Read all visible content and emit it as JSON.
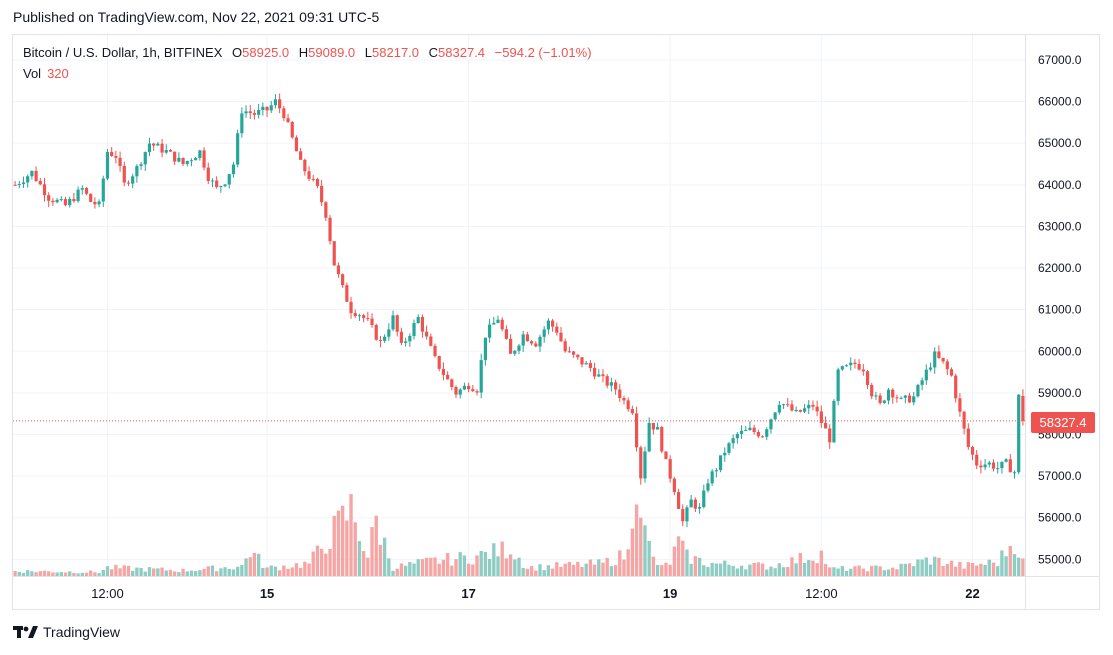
{
  "published": "Published on TradingView.com, Nov 22, 2021 09:31 UTC-5",
  "legend": {
    "symbol": "Bitcoin / U.S. Dollar, 1h, BITFINEX",
    "open_label": "O",
    "open": "58925.0",
    "high_label": "H",
    "high": "59089.0",
    "low_label": "L",
    "low": "58217.0",
    "close_label": "C",
    "close": "58327.4",
    "change": "−594.2 (−1.01%)",
    "vol_label": "Vol",
    "vol": "320"
  },
  "brand": "TradingView",
  "colors": {
    "up": "#26a69a",
    "down": "#ef5350",
    "up_vol": "#8fcdc4",
    "down_vol": "#f5a6a4",
    "grid": "#f0f3fa"
  },
  "chart_data": {
    "type": "candlestick",
    "y_ticks": [
      "67000.0",
      "66000.0",
      "65000.0",
      "64000.0",
      "63000.0",
      "62000.0",
      "61000.0",
      "60000.0",
      "59000.0",
      "58000.0",
      "57000.0",
      "56000.0",
      "55000.0"
    ],
    "ylim": [
      54600,
      67600
    ],
    "x_ticks": [
      {
        "label": "12:00",
        "bold": false,
        "index": 22
      },
      {
        "label": "15",
        "bold": true,
        "index": 60
      },
      {
        "label": "17",
        "bold": true,
        "index": 108
      },
      {
        "label": "19",
        "bold": true,
        "index": 156
      },
      {
        "label": "12:00",
        "bold": false,
        "index": 192
      },
      {
        "label": "22",
        "bold": true,
        "index": 228
      }
    ],
    "last_price": "58327.4",
    "last_price_value": 58327.4,
    "close_path": [
      [
        0,
        64000
      ],
      [
        4,
        64300
      ],
      [
        8,
        63700
      ],
      [
        12,
        63500
      ],
      [
        16,
        63900
      ],
      [
        18,
        63600
      ],
      [
        20,
        63500
      ],
      [
        22,
        64800
      ],
      [
        24,
        64700
      ],
      [
        26,
        64000
      ],
      [
        29,
        64400
      ],
      [
        32,
        65000
      ],
      [
        36,
        64800
      ],
      [
        40,
        64500
      ],
      [
        44,
        64800
      ],
      [
        46,
        64200
      ],
      [
        48,
        63900
      ],
      [
        50,
        64100
      ],
      [
        52,
        64500
      ],
      [
        54,
        65800
      ],
      [
        57,
        65700
      ],
      [
        60,
        65800
      ],
      [
        62,
        66000
      ],
      [
        64,
        65700
      ],
      [
        68,
        64500
      ],
      [
        72,
        63900
      ],
      [
        74,
        63300
      ],
      [
        76,
        62100
      ],
      [
        78,
        61500
      ],
      [
        80,
        61000
      ],
      [
        82,
        60900
      ],
      [
        84,
        60700
      ],
      [
        87,
        60200
      ],
      [
        90,
        60800
      ],
      [
        92,
        60100
      ],
      [
        96,
        60800
      ],
      [
        98,
        60300
      ],
      [
        100,
        59800
      ],
      [
        103,
        59300
      ],
      [
        105,
        59000
      ],
      [
        108,
        59200
      ],
      [
        110,
        59100
      ],
      [
        112,
        60400
      ],
      [
        115,
        60800
      ],
      [
        118,
        59900
      ],
      [
        121,
        60400
      ],
      [
        124,
        60200
      ],
      [
        127,
        60700
      ],
      [
        129,
        60500
      ],
      [
        131,
        60000
      ],
      [
        134,
        59800
      ],
      [
        137,
        59600
      ],
      [
        140,
        59300
      ],
      [
        143,
        59100
      ],
      [
        145,
        58800
      ],
      [
        147,
        58600
      ],
      [
        149,
        57000
      ],
      [
        151,
        58300
      ],
      [
        153,
        58100
      ],
      [
        155,
        57300
      ],
      [
        157,
        56700
      ],
      [
        159,
        55900
      ],
      [
        161,
        56400
      ],
      [
        163,
        56200
      ],
      [
        165,
        56900
      ],
      [
        167,
        57200
      ],
      [
        169,
        57600
      ],
      [
        172,
        58000
      ],
      [
        175,
        58100
      ],
      [
        178,
        58000
      ],
      [
        180,
        58400
      ],
      [
        182,
        58800
      ],
      [
        186,
        58500
      ],
      [
        190,
        58700
      ],
      [
        192,
        58300
      ],
      [
        194,
        57900
      ],
      [
        196,
        59500
      ],
      [
        200,
        59700
      ],
      [
        202,
        59600
      ],
      [
        204,
        59000
      ],
      [
        206,
        58700
      ],
      [
        208,
        59100
      ],
      [
        211,
        58800
      ],
      [
        214,
        58900
      ],
      [
        217,
        59500
      ],
      [
        219,
        59900
      ],
      [
        221,
        59700
      ],
      [
        223,
        59400
      ],
      [
        225,
        58500
      ],
      [
        227,
        57700
      ],
      [
        229,
        57300
      ],
      [
        232,
        57300
      ],
      [
        234,
        57200
      ],
      [
        236,
        57300
      ],
      [
        238,
        57100
      ],
      [
        239,
        58900
      ],
      [
        240,
        58327
      ]
    ],
    "volume_path": [
      [
        0,
        180
      ],
      [
        20,
        140
      ],
      [
        22,
        300
      ],
      [
        40,
        200
      ],
      [
        54,
        350
      ],
      [
        56,
        900
      ],
      [
        60,
        280
      ],
      [
        70,
        450
      ],
      [
        80,
        2400
      ],
      [
        82,
        1600
      ],
      [
        84,
        700
      ],
      [
        86,
        2000
      ],
      [
        90,
        300
      ],
      [
        100,
        550
      ],
      [
        110,
        700
      ],
      [
        115,
        900
      ],
      [
        118,
        1000
      ],
      [
        122,
        300
      ],
      [
        140,
        450
      ],
      [
        146,
        800
      ],
      [
        148,
        4200
      ],
      [
        150,
        1500
      ],
      [
        152,
        600
      ],
      [
        154,
        300
      ],
      [
        156,
        500
      ],
      [
        158,
        1200
      ],
      [
        160,
        700
      ],
      [
        165,
        450
      ],
      [
        180,
        350
      ],
      [
        192,
        800
      ],
      [
        194,
        250
      ],
      [
        210,
        300
      ],
      [
        218,
        600
      ],
      [
        226,
        350
      ],
      [
        234,
        500
      ],
      [
        238,
        1300
      ],
      [
        240,
        500
      ]
    ],
    "volume_max": 4500
  }
}
